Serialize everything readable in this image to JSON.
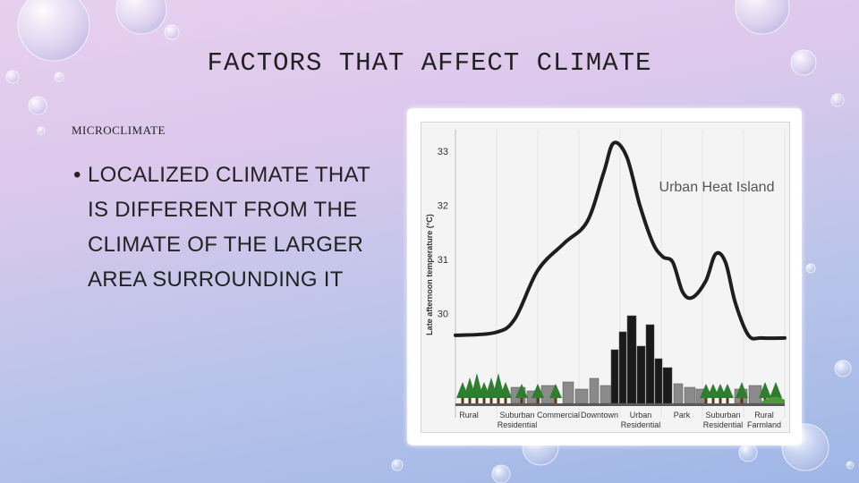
{
  "slide": {
    "title": "FACTORS THAT AFFECT CLIMATE",
    "subtitle": "MICROCLIMATE",
    "bullet": "LOCALIZED CLIMATE THAT IS DIFFERENT FROM THE CLIMATE OF THE LARGER AREA SURROUNDING IT"
  },
  "colors": {
    "curve": "#1e1e1e",
    "trees": "#2f7d2f",
    "buildings": "#8a8a8a",
    "downtown": "#1a1a1a",
    "farmland": "#4c9a3c"
  },
  "chart_data": {
    "type": "line",
    "title": "Urban Heat Island",
    "xlabel": "",
    "ylabel": "Late afternoon temperature (°C)",
    "ylim": [
      29.4,
      33.2
    ],
    "yticks": [
      "33",
      "32",
      "31",
      "30"
    ],
    "categories": [
      "Rural",
      "Suburban Residential",
      "Commercial",
      "Downtown",
      "Urban Residential",
      "Park",
      "Suburban Residential",
      "Rural Farmland"
    ],
    "category_lines": [
      [
        "Rural"
      ],
      [
        "Suburban",
        "Residential"
      ],
      [
        "Commercial"
      ],
      [
        "Downtown"
      ],
      [
        "Urban",
        "Residential"
      ],
      [
        "Park"
      ],
      [
        "Suburban",
        "Residential"
      ],
      [
        "Rural",
        "Farmland"
      ]
    ],
    "series": [
      {
        "x": [
          0,
          0.12,
          0.18,
          0.25,
          0.33,
          0.4,
          0.45,
          0.48,
          0.52,
          0.56,
          0.6,
          0.63,
          0.66,
          0.69,
          0.72,
          0.76,
          0.79,
          0.82,
          0.85,
          0.89,
          0.93,
          1
        ],
        "values": [
          29.6,
          29.65,
          29.9,
          30.8,
          31.3,
          31.7,
          32.6,
          33.15,
          32.9,
          32.0,
          31.3,
          31.05,
          30.95,
          30.4,
          30.3,
          30.6,
          31.1,
          30.95,
          30.2,
          29.6,
          29.55,
          29.55
        ]
      }
    ]
  }
}
